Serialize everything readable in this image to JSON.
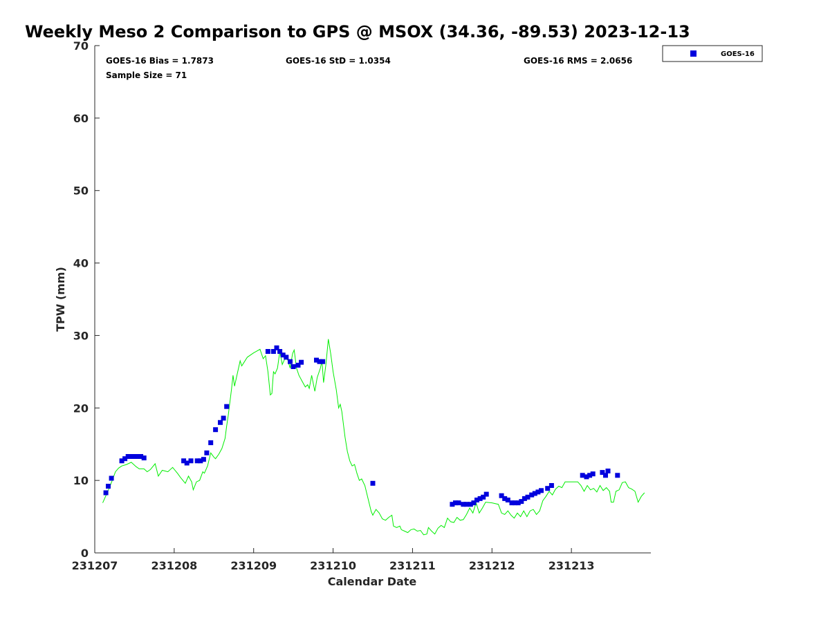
{
  "chart_data": {
    "type": "scatter",
    "title": "Weekly Meso 2 Comparison to GPS @ MSOX (34.36, -89.53) 2023-12-13",
    "xlabel": "Calendar Date",
    "ylabel": "TPW (mm)",
    "xlim": [
      231207,
      231214
    ],
    "ylim": [
      0,
      70
    ],
    "x_ticks": [
      "231207",
      "231208",
      "231209",
      "231210",
      "231211",
      "231212",
      "231213"
    ],
    "y_ticks": [
      "0",
      "10",
      "20",
      "30",
      "40",
      "50",
      "60",
      "70"
    ],
    "grid": false,
    "legend_position": "top-right, outside plot",
    "stats": {
      "bias": "GOES-16 Bias = 1.7873",
      "std": "GOES-16 StD = 1.0354",
      "rms": "GOES-16 RMS = 2.0656",
      "sample": "Sample Size = 71"
    },
    "series": [
      {
        "name": "GOES-16",
        "kind": "scatter",
        "color": "#0000dd",
        "points": [
          [
            231207.14,
            8.3
          ],
          [
            231207.17,
            9.2
          ],
          [
            231207.21,
            10.3
          ],
          [
            231207.34,
            12.7
          ],
          [
            231207.38,
            13.0
          ],
          [
            231207.42,
            13.3
          ],
          [
            231207.46,
            13.3
          ],
          [
            231207.5,
            13.3
          ],
          [
            231207.54,
            13.3
          ],
          [
            231207.58,
            13.3
          ],
          [
            231207.62,
            13.1
          ],
          [
            231208.12,
            12.7
          ],
          [
            231208.16,
            12.4
          ],
          [
            231208.21,
            12.7
          ],
          [
            231208.29,
            12.7
          ],
          [
            231208.33,
            12.7
          ],
          [
            231208.37,
            12.9
          ],
          [
            231208.41,
            13.8
          ],
          [
            231208.46,
            15.2
          ],
          [
            231208.52,
            17.0
          ],
          [
            231208.58,
            18.0
          ],
          [
            231208.62,
            18.6
          ],
          [
            231208.66,
            20.2
          ],
          [
            231209.18,
            27.8
          ],
          [
            231209.25,
            27.8
          ],
          [
            231209.29,
            28.3
          ],
          [
            231209.33,
            27.8
          ],
          [
            231209.37,
            27.3
          ],
          [
            231209.41,
            27.0
          ],
          [
            231209.46,
            26.4
          ],
          [
            231209.5,
            25.7
          ],
          [
            231209.56,
            25.9
          ],
          [
            231209.6,
            26.3
          ],
          [
            231209.79,
            26.6
          ],
          [
            231209.83,
            26.4
          ],
          [
            231209.87,
            26.4
          ],
          [
            231210.5,
            9.6
          ],
          [
            231211.5,
            6.7
          ],
          [
            231211.54,
            6.9
          ],
          [
            231211.58,
            6.9
          ],
          [
            231211.64,
            6.7
          ],
          [
            231211.68,
            6.7
          ],
          [
            231211.73,
            6.7
          ],
          [
            231211.77,
            6.9
          ],
          [
            231211.81,
            7.3
          ],
          [
            231211.85,
            7.5
          ],
          [
            231211.89,
            7.7
          ],
          [
            231211.93,
            8.1
          ],
          [
            231212.12,
            7.9
          ],
          [
            231212.16,
            7.5
          ],
          [
            231212.2,
            7.3
          ],
          [
            231212.25,
            6.9
          ],
          [
            231212.29,
            6.9
          ],
          [
            231212.33,
            6.9
          ],
          [
            231212.37,
            7.1
          ],
          [
            231212.41,
            7.5
          ],
          [
            231212.45,
            7.7
          ],
          [
            231212.5,
            8.0
          ],
          [
            231212.54,
            8.2
          ],
          [
            231212.58,
            8.4
          ],
          [
            231212.62,
            8.6
          ],
          [
            231212.7,
            8.9
          ],
          [
            231212.75,
            9.3
          ],
          [
            231213.14,
            10.7
          ],
          [
            231213.19,
            10.5
          ],
          [
            231213.23,
            10.7
          ],
          [
            231213.27,
            10.9
          ],
          [
            231213.39,
            11.1
          ],
          [
            231213.43,
            10.7
          ],
          [
            231213.46,
            11.3
          ],
          [
            231213.58,
            10.7
          ]
        ]
      },
      {
        "kind": "line",
        "color": "#00ee00",
        "points": [
          [
            231207.1,
            6.9
          ],
          [
            231207.14,
            7.9
          ],
          [
            231207.18,
            8.9
          ],
          [
            231207.22,
            10.0
          ],
          [
            231207.26,
            11.2
          ],
          [
            231207.3,
            11.7
          ],
          [
            231207.34,
            12.0
          ],
          [
            231207.4,
            12.2
          ],
          [
            231207.46,
            12.5
          ],
          [
            231207.52,
            11.9
          ],
          [
            231207.56,
            11.6
          ],
          [
            231207.62,
            11.6
          ],
          [
            231207.66,
            11.2
          ],
          [
            231207.7,
            11.5
          ],
          [
            231207.76,
            12.3
          ],
          [
            231207.8,
            10.6
          ],
          [
            231207.85,
            11.4
          ],
          [
            231207.92,
            11.2
          ],
          [
            231207.98,
            11.8
          ],
          [
            231208.04,
            11.0
          ],
          [
            231208.08,
            10.4
          ],
          [
            231208.14,
            9.6
          ],
          [
            231208.18,
            10.6
          ],
          [
            231208.22,
            9.8
          ],
          [
            231208.24,
            8.7
          ],
          [
            231208.28,
            9.8
          ],
          [
            231208.32,
            10.0
          ],
          [
            231208.36,
            11.2
          ],
          [
            231208.38,
            11.0
          ],
          [
            231208.42,
            12.0
          ],
          [
            231208.46,
            13.8
          ],
          [
            231208.5,
            13.2
          ],
          [
            231208.52,
            13.0
          ],
          [
            231208.56,
            13.6
          ],
          [
            231208.6,
            14.4
          ],
          [
            231208.64,
            15.8
          ],
          [
            231208.66,
            17.5
          ],
          [
            231208.68,
            19.0
          ],
          [
            231208.72,
            22.5
          ],
          [
            231208.74,
            24.5
          ],
          [
            231208.76,
            23.0
          ],
          [
            231208.8,
            25.0
          ],
          [
            231208.83,
            26.5
          ],
          [
            231208.85,
            25.8
          ],
          [
            231208.88,
            26.3
          ],
          [
            231208.92,
            27.0
          ],
          [
            231209.0,
            27.6
          ],
          [
            231209.08,
            28.1
          ],
          [
            231209.12,
            26.8
          ],
          [
            231209.15,
            27.2
          ],
          [
            231209.18,
            25.0
          ],
          [
            231209.21,
            21.8
          ],
          [
            231209.23,
            22.0
          ],
          [
            231209.25,
            25.0
          ],
          [
            231209.27,
            24.7
          ],
          [
            231209.3,
            25.5
          ],
          [
            231209.33,
            27.8
          ],
          [
            231209.36,
            26.0
          ],
          [
            231209.4,
            27.0
          ],
          [
            231209.43,
            26.6
          ],
          [
            231209.46,
            25.5
          ],
          [
            231209.49,
            27.5
          ],
          [
            231209.51,
            28.0
          ],
          [
            231209.54,
            25.5
          ],
          [
            231209.57,
            24.5
          ],
          [
            231209.62,
            23.5
          ],
          [
            231209.65,
            22.9
          ],
          [
            231209.68,
            23.2
          ],
          [
            231209.7,
            22.7
          ],
          [
            231209.73,
            24.5
          ],
          [
            231209.77,
            22.3
          ],
          [
            231209.8,
            24.2
          ],
          [
            231209.84,
            25.5
          ],
          [
            231209.86,
            26.5
          ],
          [
            231209.88,
            23.5
          ],
          [
            231209.91,
            26.0
          ],
          [
            231209.94,
            29.5
          ],
          [
            231209.97,
            27.5
          ],
          [
            231210.0,
            25.0
          ],
          [
            231210.04,
            22.5
          ],
          [
            231210.07,
            20.0
          ],
          [
            231210.09,
            20.5
          ],
          [
            231210.11,
            19.5
          ],
          [
            231210.15,
            16.0
          ],
          [
            231210.18,
            14.0
          ],
          [
            231210.21,
            12.7
          ],
          [
            231210.24,
            12.0
          ],
          [
            231210.27,
            12.2
          ],
          [
            231210.3,
            11.0
          ],
          [
            231210.33,
            10.0
          ],
          [
            231210.36,
            10.2
          ],
          [
            231210.4,
            9.3
          ],
          [
            231210.44,
            7.5
          ],
          [
            231210.48,
            5.7
          ],
          [
            231210.5,
            5.2
          ],
          [
            231210.54,
            6.0
          ],
          [
            231210.58,
            5.5
          ],
          [
            231210.62,
            4.7
          ],
          [
            231210.66,
            4.5
          ],
          [
            231210.7,
            4.9
          ],
          [
            231210.74,
            5.2
          ],
          [
            231210.76,
            3.7
          ],
          [
            231210.8,
            3.5
          ],
          [
            231210.84,
            3.7
          ],
          [
            231210.86,
            3.2
          ],
          [
            231210.9,
            3.0
          ],
          [
            231210.94,
            2.8
          ],
          [
            231210.98,
            3.2
          ],
          [
            231211.02,
            3.3
          ],
          [
            231211.06,
            3.0
          ],
          [
            231211.1,
            3.1
          ],
          [
            231211.14,
            2.5
          ],
          [
            231211.18,
            2.6
          ],
          [
            231211.2,
            3.5
          ],
          [
            231211.24,
            3.0
          ],
          [
            231211.28,
            2.6
          ],
          [
            231211.32,
            3.4
          ],
          [
            231211.36,
            3.8
          ],
          [
            231211.4,
            3.5
          ],
          [
            231211.44,
            4.8
          ],
          [
            231211.48,
            4.3
          ],
          [
            231211.52,
            4.2
          ],
          [
            231211.56,
            4.9
          ],
          [
            231211.6,
            4.5
          ],
          [
            231211.64,
            4.6
          ],
          [
            231211.68,
            5.3
          ],
          [
            231211.72,
            6.2
          ],
          [
            231211.76,
            5.5
          ],
          [
            231211.8,
            6.9
          ],
          [
            231211.84,
            5.5
          ],
          [
            231211.88,
            6.2
          ],
          [
            231211.92,
            7.0
          ],
          [
            231212.0,
            6.9
          ],
          [
            231212.08,
            6.7
          ],
          [
            231212.12,
            5.5
          ],
          [
            231212.16,
            5.3
          ],
          [
            231212.2,
            5.8
          ],
          [
            231212.24,
            5.2
          ],
          [
            231212.28,
            4.8
          ],
          [
            231212.32,
            5.5
          ],
          [
            231212.36,
            5.0
          ],
          [
            231212.4,
            5.8
          ],
          [
            231212.44,
            5.0
          ],
          [
            231212.48,
            5.8
          ],
          [
            231212.52,
            6.0
          ],
          [
            231212.56,
            5.3
          ],
          [
            231212.6,
            5.8
          ],
          [
            231212.64,
            7.2
          ],
          [
            231212.68,
            7.8
          ],
          [
            231212.72,
            8.5
          ],
          [
            231212.76,
            8.0
          ],
          [
            231212.8,
            8.8
          ],
          [
            231212.84,
            9.2
          ],
          [
            231212.88,
            9.0
          ],
          [
            231212.92,
            9.8
          ],
          [
            231213.0,
            9.8
          ],
          [
            231213.08,
            9.8
          ],
          [
            231213.12,
            9.3
          ],
          [
            231213.16,
            8.5
          ],
          [
            231213.2,
            9.3
          ],
          [
            231213.24,
            8.7
          ],
          [
            231213.28,
            8.9
          ],
          [
            231213.32,
            8.4
          ],
          [
            231213.36,
            9.3
          ],
          [
            231213.4,
            8.6
          ],
          [
            231213.44,
            9.0
          ],
          [
            231213.48,
            8.5
          ],
          [
            231213.5,
            7.0
          ],
          [
            231213.53,
            7.0
          ],
          [
            231213.56,
            8.5
          ],
          [
            231213.6,
            8.7
          ],
          [
            231213.64,
            9.7
          ],
          [
            231213.68,
            9.8
          ],
          [
            231213.72,
            9.0
          ],
          [
            231213.76,
            8.8
          ],
          [
            231213.8,
            8.5
          ],
          [
            231213.84,
            7.0
          ],
          [
            231213.88,
            7.8
          ],
          [
            231213.92,
            8.3
          ]
        ]
      }
    ]
  }
}
